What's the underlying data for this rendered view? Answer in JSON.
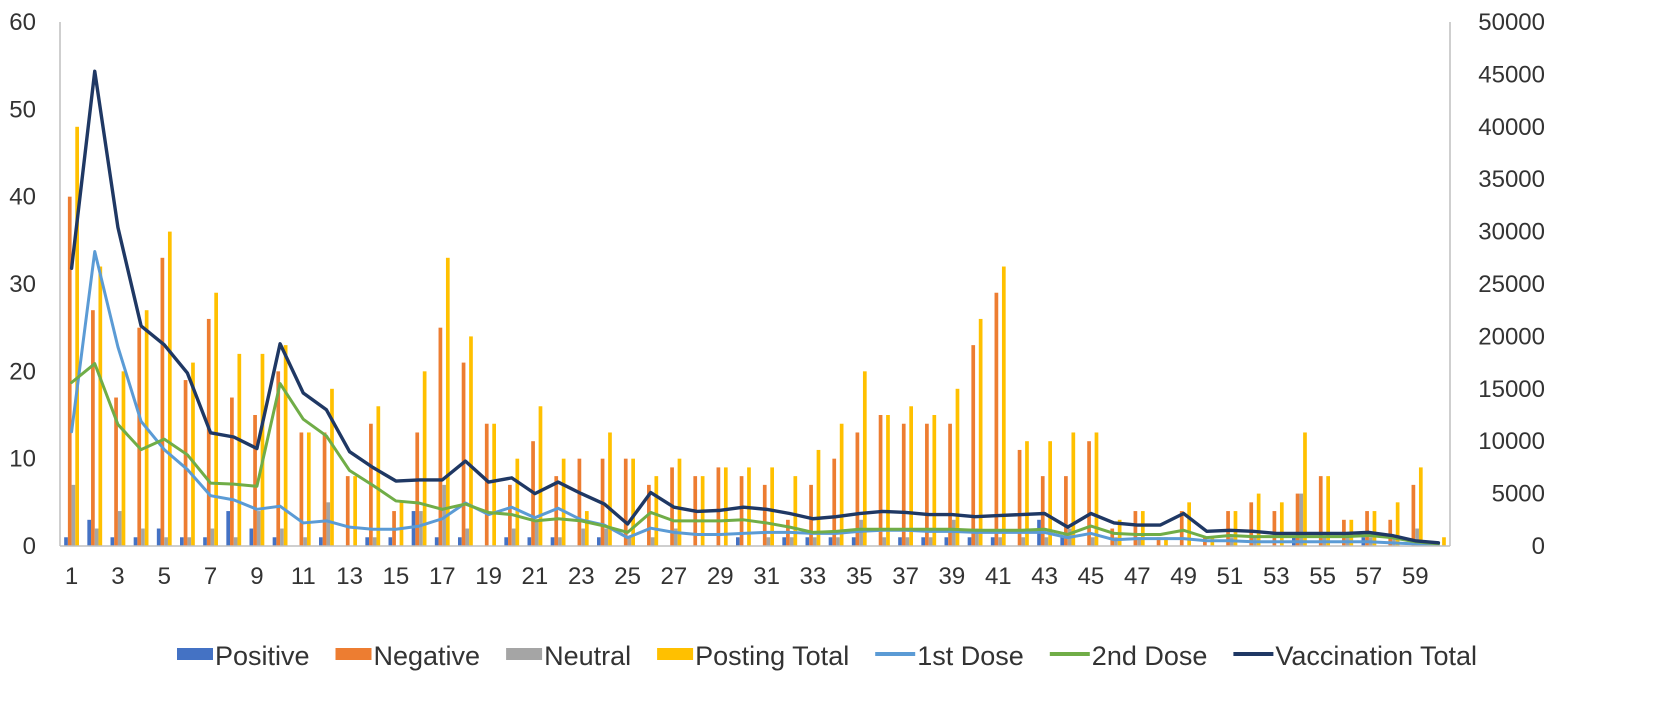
{
  "chart_data": {
    "type": "bar",
    "combo": "bar+line (dual axis)",
    "title": "",
    "xlabel": "",
    "ylabel": "",
    "y2label": "",
    "ylim": [
      0,
      60
    ],
    "y2lim": [
      0,
      50000
    ],
    "y_ticks": [
      0,
      10,
      20,
      30,
      40,
      50,
      60
    ],
    "y2_ticks": [
      0,
      5000,
      10000,
      15000,
      20000,
      25000,
      30000,
      35000,
      40000,
      45000,
      50000
    ],
    "x_tick_labels": [
      "1",
      "3",
      "5",
      "7",
      "9",
      "11",
      "13",
      "15",
      "17",
      "19",
      "21",
      "23",
      "25",
      "27",
      "29",
      "31",
      "33",
      "35",
      "37",
      "39",
      "41",
      "43",
      "45",
      "47",
      "49",
      "51",
      "53",
      "55",
      "57",
      "59"
    ],
    "grid": false,
    "legend_position": "bottom",
    "categories": [
      1,
      2,
      3,
      4,
      5,
      6,
      7,
      8,
      9,
      10,
      11,
      12,
      13,
      14,
      15,
      16,
      17,
      18,
      19,
      20,
      21,
      22,
      23,
      24,
      25,
      26,
      27,
      28,
      29,
      30,
      31,
      32,
      33,
      34,
      35,
      36,
      37,
      38,
      39,
      40,
      41,
      42,
      43,
      44,
      45,
      46,
      47,
      48,
      49,
      50,
      51,
      52,
      53,
      54,
      55,
      56,
      57,
      58,
      59,
      60
    ],
    "bar_series": [
      {
        "name": "Positive",
        "color": "#4472C4",
        "values": [
          1,
          3,
          1,
          1,
          2,
          1,
          1,
          4,
          2,
          1,
          0,
          1,
          0,
          1,
          1,
          4,
          1,
          1,
          0,
          1,
          1,
          1,
          0,
          1,
          0,
          0,
          0,
          0,
          0,
          1,
          0,
          1,
          1,
          1,
          1,
          0,
          1,
          1,
          1,
          1,
          1,
          0,
          3,
          1,
          0,
          0,
          0,
          0,
          0,
          0,
          0,
          0,
          0,
          1,
          0,
          0,
          1,
          0,
          0,
          0
        ]
      },
      {
        "name": "Negative",
        "color": "#ED7D31",
        "values": [
          40,
          27,
          17,
          25,
          33,
          19,
          26,
          17,
          15,
          20,
          13,
          13,
          8,
          14,
          4,
          13,
          25,
          21,
          14,
          7,
          12,
          8,
          10,
          10,
          10,
          7,
          9,
          8,
          9,
          8,
          7,
          3,
          7,
          10,
          13,
          15,
          14,
          14,
          14,
          23,
          29,
          11,
          8,
          8,
          12,
          2,
          4,
          1,
          4,
          1,
          4,
          5,
          4,
          6,
          8,
          3,
          4,
          3,
          7,
          0
        ]
      },
      {
        "name": "Neutral",
        "color": "#A5A5A5",
        "values": [
          7,
          2,
          4,
          2,
          1,
          1,
          2,
          1,
          4,
          2,
          1,
          5,
          0,
          1,
          0,
          4,
          7,
          2,
          0,
          2,
          3,
          1,
          2,
          2,
          1,
          1,
          2,
          0,
          0,
          0,
          1,
          1,
          1,
          1,
          3,
          1,
          1,
          1,
          3,
          2,
          1,
          1,
          1,
          2,
          1,
          1,
          1,
          0,
          0,
          0,
          1,
          1,
          0,
          6,
          1,
          1,
          1,
          1,
          2,
          0
        ]
      },
      {
        "name": "Posting Total",
        "color": "#FFC000",
        "values": [
          48,
          32,
          20,
          27,
          36,
          21,
          29,
          22,
          22,
          23,
          13,
          18,
          8,
          16,
          5,
          20,
          33,
          24,
          14,
          10,
          16,
          10,
          4,
          13,
          10,
          8,
          10,
          8,
          9,
          9,
          9,
          8,
          11,
          14,
          20,
          15,
          16,
          15,
          18,
          26,
          32,
          12,
          12,
          13,
          13,
          3,
          4,
          1,
          5,
          1,
          4,
          6,
          5,
          13,
          8,
          3,
          4,
          5,
          9,
          1
        ]
      }
    ],
    "line_series": [
      {
        "name": "1st Dose",
        "color": "#5B9BD5",
        "axis": "right",
        "values": [
          10900,
          28100,
          19000,
          11900,
          9200,
          7300,
          4800,
          4400,
          3500,
          3800,
          2200,
          2400,
          1800,
          1600,
          1600,
          1900,
          2600,
          4100,
          3000,
          3700,
          2700,
          3600,
          2500,
          2000,
          800,
          1700,
          1300,
          1100,
          1100,
          1200,
          1300,
          1300,
          1200,
          1200,
          1400,
          1500,
          1500,
          1400,
          1400,
          1300,
          1300,
          1300,
          1300,
          800,
          1200,
          600,
          700,
          700,
          700,
          500,
          500,
          400,
          400,
          400,
          400,
          400,
          400,
          300,
          200,
          100
        ]
      },
      {
        "name": "2nd Dose",
        "color": "#70AD47",
        "axis": "right",
        "values": [
          15600,
          17400,
          11600,
          9200,
          10200,
          8700,
          6000,
          5900,
          5700,
          15500,
          12100,
          10500,
          7200,
          5800,
          4300,
          4100,
          3500,
          4000,
          3200,
          3000,
          2400,
          2600,
          2400,
          1900,
          1300,
          3200,
          2400,
          2400,
          2400,
          2500,
          2200,
          1800,
          1300,
          1400,
          1600,
          1600,
          1600,
          1600,
          1600,
          1500,
          1500,
          1500,
          1600,
          1100,
          1900,
          1200,
          1100,
          1100,
          1500,
          800,
          1000,
          900,
          900,
          900,
          900,
          900,
          1000,
          800,
          400,
          200
        ]
      },
      {
        "name": "Vaccination Total",
        "color": "#1F3864",
        "axis": "right",
        "values": [
          26500,
          45300,
          30400,
          21000,
          19200,
          16500,
          10800,
          10400,
          9300,
          19300,
          14600,
          13000,
          9000,
          7500,
          6200,
          6300,
          6300,
          8100,
          6100,
          6500,
          5000,
          6100,
          5000,
          4000,
          2100,
          5100,
          3700,
          3300,
          3400,
          3700,
          3500,
          3100,
          2600,
          2800,
          3100,
          3300,
          3200,
          3000,
          3000,
          2800,
          2900,
          3000,
          3100,
          1800,
          3100,
          2200,
          2000,
          2000,
          3100,
          1400,
          1500,
          1400,
          1200,
          1200,
          1200,
          1200,
          1300,
          1000,
          500,
          300
        ]
      }
    ]
  }
}
